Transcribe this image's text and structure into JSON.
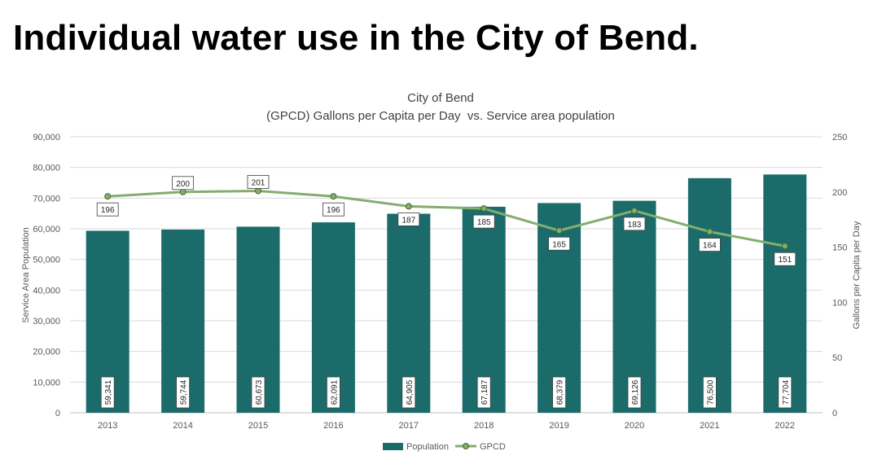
{
  "page": {
    "title": "Individual water use in the City of Bend."
  },
  "colors": {
    "bar": "#1b6b6b",
    "line": "#84ad6e",
    "marker": "#84ad6e",
    "marker_stroke": "#3f6b2c",
    "grid": "#d9d9d9",
    "text": "#595959",
    "title_text": "#404040"
  },
  "chart_data": {
    "type": "bar+line",
    "title": "City of Bend",
    "subtitle": "(GPCD) Gallons per Capita per Day  vs. Service area population",
    "categories": [
      "2013",
      "2014",
      "2015",
      "2016",
      "2017",
      "2018",
      "2019",
      "2020",
      "2021",
      "2022"
    ],
    "series": [
      {
        "name": "Population",
        "type": "bar",
        "axis": "left",
        "values": [
          59341,
          59744,
          60673,
          62091,
          64905,
          67187,
          68379,
          69126,
          76500,
          77704
        ],
        "labels": [
          "59,341",
          "59,744",
          "60,673",
          "62,091",
          "64,905",
          "67,187",
          "68,379",
          "69,126",
          "76,500",
          "77,704"
        ]
      },
      {
        "name": "GPCD",
        "type": "line",
        "axis": "right",
        "values": [
          196,
          200,
          201,
          196,
          187,
          185,
          165,
          183,
          164,
          151
        ],
        "labels": [
          "196",
          "200",
          "201",
          "196",
          "187",
          "185",
          "165",
          "183",
          "164",
          "151"
        ]
      }
    ],
    "ylabel": "Service Area Population",
    "y2label": "Gallons per Capita per Day",
    "ylim": [
      0,
      90000
    ],
    "y2lim": [
      0,
      250
    ],
    "yticks": [
      0,
      10000,
      20000,
      30000,
      40000,
      50000,
      60000,
      70000,
      80000,
      90000
    ],
    "ytick_labels": [
      "0",
      "10,000",
      "20,000",
      "30,000",
      "40,000",
      "50,000",
      "60,000",
      "70,000",
      "80,000",
      "90,000"
    ],
    "y2ticks": [
      0,
      50,
      100,
      150,
      200,
      250
    ],
    "y2tick_labels": [
      "0",
      "50",
      "100",
      "150",
      "200",
      "250"
    ],
    "grid": true,
    "legend": "bottom-center",
    "label_side": [
      "below",
      "above",
      "above",
      "below",
      "below",
      "below",
      "below",
      "below",
      "below",
      "below"
    ]
  }
}
